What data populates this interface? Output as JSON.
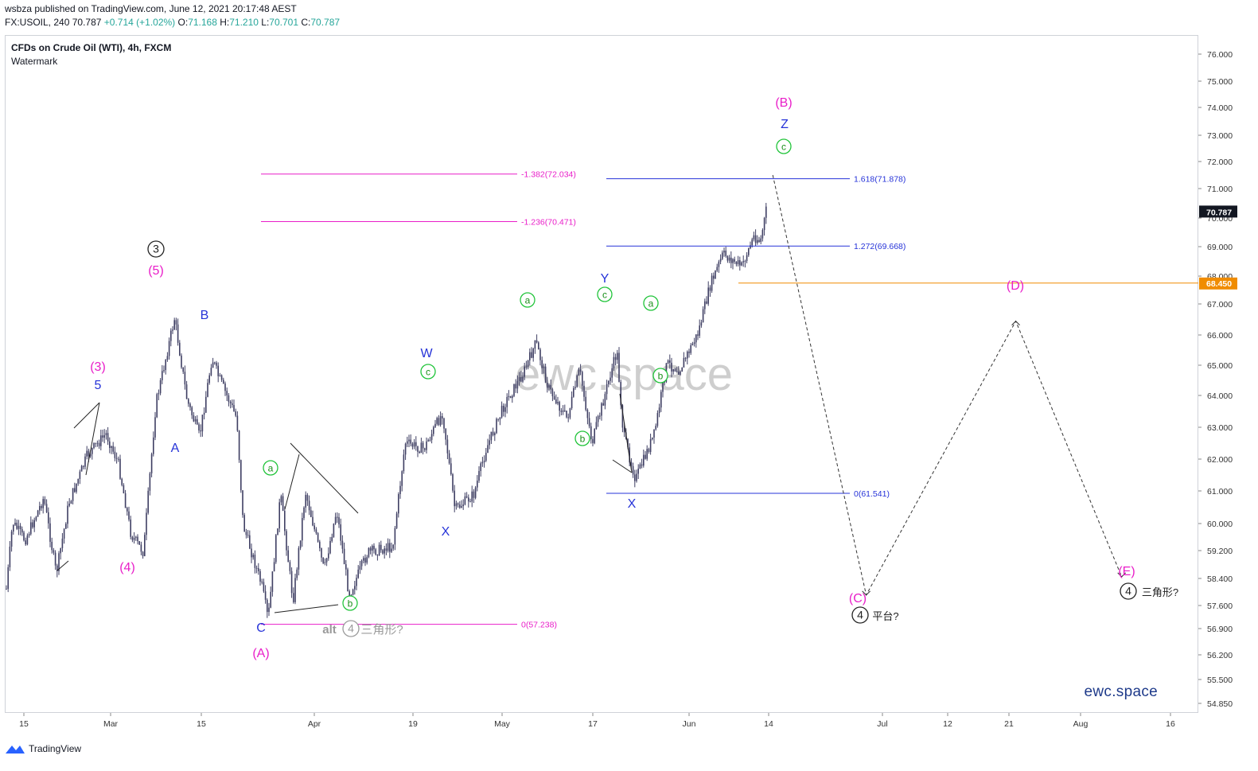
{
  "header": {
    "publisher_line": "wsbza published on TradingView.com, June 12, 2021 20:17:48 AEST",
    "symbol": "FX:USOIL, 240",
    "last": "70.787",
    "change": "+0.714 (+1.02%)",
    "o_label": "O:",
    "o_value": "71.168",
    "h_label": "H:",
    "h_value": "71.210",
    "l_label": "L:",
    "l_value": "70.701",
    "c_label": "C:",
    "c_value": "70.787"
  },
  "chart_title": "CFDs on Crude Oil (WTI), 4h, FXCM",
  "watermark_label": "Watermark",
  "watermark_text": "ewc.space",
  "brand_text": "ewc.space",
  "footer_label": "TradingView",
  "colors": {
    "magenta": "#e91ec9",
    "blue": "#2633d8",
    "green": "#21c43a",
    "black": "#222222",
    "gray": "#9a9a9a",
    "orange": "#f08c00",
    "candle": "#3f3f63"
  },
  "chart_data": {
    "type": "candlestick",
    "y_axis": {
      "side": "right",
      "ticks": [
        "76.000",
        "75.000",
        "74.000",
        "73.000",
        "72.000",
        "71.000",
        "70.000",
        "69.000",
        "68.000",
        "67.000",
        "66.000",
        "65.000",
        "64.000",
        "63.000",
        "62.000",
        "61.000",
        "60.000",
        "59.200",
        "58.400",
        "57.600",
        "56.900",
        "56.200",
        "55.500",
        "54.850"
      ],
      "last_price_badge": "70.787",
      "level_badge": "68.450"
    },
    "x_axis": {
      "ticks": [
        "15",
        "Mar",
        "15",
        "Apr",
        "19",
        "May",
        "17",
        "Jun",
        "14",
        "Jul",
        "12",
        "21",
        "Aug",
        "16"
      ]
    },
    "price_anchors": [
      {
        "date": "2021-02-09",
        "price": 58.4
      },
      {
        "date": "2021-02-10",
        "price": 60.6
      },
      {
        "date": "2021-02-12",
        "price": 60.0
      },
      {
        "date": "2021-02-15",
        "price": 61.4
      },
      {
        "date": "2021-02-17",
        "price": 58.9
      },
      {
        "date": "2021-02-19",
        "price": 61.2
      },
      {
        "date": "2021-02-22",
        "price": 62.8
      },
      {
        "date": "2021-02-25",
        "price": 63.5
      },
      {
        "date": "2021-02-27",
        "price": 62.5
      },
      {
        "date": "2021-03-01",
        "price": 60.2
      },
      {
        "date": "2021-03-03",
        "price": 59.6
      },
      {
        "date": "2021-03-05",
        "price": 64.5
      },
      {
        "date": "2021-03-08",
        "price": 67.3
      },
      {
        "date": "2021-03-10",
        "price": 64.6
      },
      {
        "date": "2021-03-12",
        "price": 63.4
      },
      {
        "date": "2021-03-14",
        "price": 66.0
      },
      {
        "date": "2021-03-15",
        "price": 65.4
      },
      {
        "date": "2021-03-18",
        "price": 64.0
      },
      {
        "date": "2021-03-19",
        "price": 60.5
      },
      {
        "date": "2021-03-22",
        "price": 58.5
      },
      {
        "date": "2021-03-23",
        "price": 57.4
      },
      {
        "date": "2021-03-25",
        "price": 61.5
      },
      {
        "date": "2021-03-27",
        "price": 58.0
      },
      {
        "date": "2021-03-29",
        "price": 61.6
      },
      {
        "date": "2021-04-01",
        "price": 59.0
      },
      {
        "date": "2021-04-03",
        "price": 61.0
      },
      {
        "date": "2021-04-05",
        "price": 58.2
      },
      {
        "date": "2021-04-08",
        "price": 59.6
      },
      {
        "date": "2021-04-12",
        "price": 59.8
      },
      {
        "date": "2021-04-14",
        "price": 63.2
      },
      {
        "date": "2021-04-17",
        "price": 63.0
      },
      {
        "date": "2021-04-20",
        "price": 64.2
      },
      {
        "date": "2021-04-22",
        "price": 61.0
      },
      {
        "date": "2021-04-25",
        "price": 61.5
      },
      {
        "date": "2021-04-27",
        "price": 63.0
      },
      {
        "date": "2021-04-30",
        "price": 64.5
      },
      {
        "date": "2021-05-03",
        "price": 65.5
      },
      {
        "date": "2021-05-05",
        "price": 66.5
      },
      {
        "date": "2021-05-07",
        "price": 65.0
      },
      {
        "date": "2021-05-10",
        "price": 64.0
      },
      {
        "date": "2021-05-12",
        "price": 65.6
      },
      {
        "date": "2021-05-14",
        "price": 63.2
      },
      {
        "date": "2021-05-17",
        "price": 65.5
      },
      {
        "date": "2021-05-18",
        "price": 66.2
      },
      {
        "date": "2021-05-19",
        "price": 63.5
      },
      {
        "date": "2021-05-21",
        "price": 62.0
      },
      {
        "date": "2021-05-24",
        "price": 63.5
      },
      {
        "date": "2021-05-26",
        "price": 65.8
      },
      {
        "date": "2021-05-28",
        "price": 65.6
      },
      {
        "date": "2021-05-31",
        "price": 66.8
      },
      {
        "date": "2021-06-02",
        "price": 68.4
      },
      {
        "date": "2021-06-04",
        "price": 69.4
      },
      {
        "date": "2021-06-07",
        "price": 69.0
      },
      {
        "date": "2021-06-09",
        "price": 70.0
      },
      {
        "date": "2021-06-10",
        "price": 69.8
      },
      {
        "date": "2021-06-11",
        "price": 70.9
      }
    ],
    "fib_levels": [
      {
        "label": "-1.382(72.034)",
        "value": 72.034,
        "color": "magenta"
      },
      {
        "label": "-1.236(70.471)",
        "value": 70.471,
        "color": "magenta"
      },
      {
        "label": "0(57.238)",
        "value": 57.238,
        "color": "magenta"
      },
      {
        "label": "1.618(71.878)",
        "value": 71.878,
        "color": "blue"
      },
      {
        "label": "1.272(69.668)",
        "value": 69.668,
        "color": "blue"
      },
      {
        "label": "0(61.541)",
        "value": 61.541,
        "color": "blue"
      }
    ],
    "horizontal_level": {
      "value": 68.45,
      "color": "orange"
    },
    "projection_path": [
      {
        "date": "2021-06-12",
        "price": 72.0
      },
      {
        "date": "2021-06-27",
        "price": 58.2
      },
      {
        "date": "2021-07-21",
        "price": 67.2
      },
      {
        "date": "2021-08-07",
        "price": 58.8
      }
    ],
    "wave_labels": [
      {
        "text": "(3)",
        "style": "magenta"
      },
      {
        "text": "5",
        "style": "blue"
      },
      {
        "text": "(4)",
        "style": "magenta"
      },
      {
        "text": "3",
        "style": "black-circle"
      },
      {
        "text": "(5)",
        "style": "magenta"
      },
      {
        "text": "A",
        "style": "blue"
      },
      {
        "text": "B",
        "style": "blue"
      },
      {
        "text": "C",
        "style": "blue"
      },
      {
        "text": "(A)",
        "style": "magenta"
      },
      {
        "text": "a",
        "style": "green-circle"
      },
      {
        "text": "b",
        "style": "green-circle"
      },
      {
        "text": "alt",
        "style": "gray"
      },
      {
        "text": "4",
        "style": "gray-circle"
      },
      {
        "text": "三角形?",
        "style": "gray"
      },
      {
        "text": "W",
        "style": "blue"
      },
      {
        "text": "c",
        "style": "green-circle"
      },
      {
        "text": "X",
        "style": "blue"
      },
      {
        "text": "a",
        "style": "green-circle"
      },
      {
        "text": "b",
        "style": "green-circle"
      },
      {
        "text": "Y",
        "style": "blue"
      },
      {
        "text": "c",
        "style": "green-circle"
      },
      {
        "text": "X",
        "style": "blue"
      },
      {
        "text": "a",
        "style": "green-circle"
      },
      {
        "text": "b",
        "style": "green-circle"
      },
      {
        "text": "(B)",
        "style": "magenta"
      },
      {
        "text": "Z",
        "style": "blue"
      },
      {
        "text": "c",
        "style": "green-circle"
      },
      {
        "text": "(C)",
        "style": "magenta"
      },
      {
        "text": "4",
        "style": "black-circle"
      },
      {
        "text": "平台?",
        "style": "black"
      },
      {
        "text": "(D)",
        "style": "magenta"
      },
      {
        "text": "(E)",
        "style": "magenta"
      },
      {
        "text": "4",
        "style": "black-circle"
      },
      {
        "text": "三角形?",
        "style": "black"
      }
    ]
  }
}
